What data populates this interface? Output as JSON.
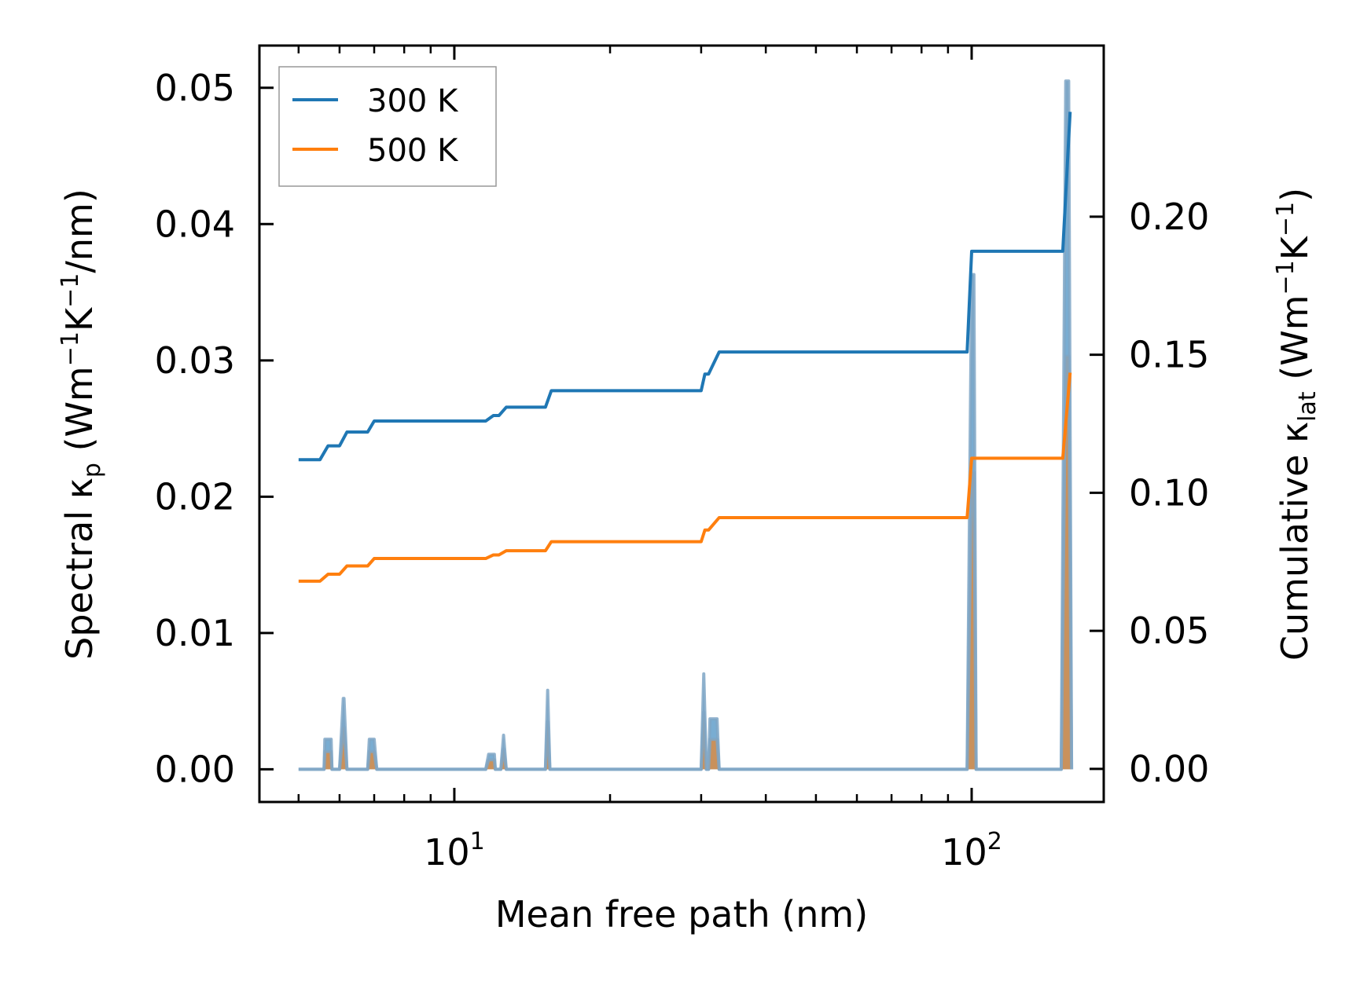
{
  "chart_data": {
    "type": "line",
    "title": "",
    "xlabel": "Mean free path (nm)",
    "ylabel_left": {
      "main": "Spectral κ",
      "sub": "p",
      "unit_pre": " (Wm",
      "sup1": "−1",
      "unit_mid": "K",
      "sup2": "−1",
      "unit_post": "/nm)"
    },
    "ylabel_right": {
      "main": "Cumulative κ",
      "sub": "lat",
      "unit_pre": " (Wm",
      "sup1": "−1",
      "unit_mid": "K",
      "sup2": "−1",
      "unit_post": ")"
    },
    "xscale": "log",
    "xlim": [
      4.2,
      180
    ],
    "ylim_left": [
      -0.0024,
      0.0531
    ],
    "ylim_right": [
      -0.012,
      0.262
    ],
    "xticks": [
      {
        "value": 10,
        "base": "10",
        "exp": "1"
      },
      {
        "value": 100,
        "base": "10",
        "exp": "2"
      }
    ],
    "yticks_left": [
      {
        "value": 0.0,
        "label": "0.00"
      },
      {
        "value": 0.01,
        "label": "0.01"
      },
      {
        "value": 0.02,
        "label": "0.02"
      },
      {
        "value": 0.03,
        "label": "0.03"
      },
      {
        "value": 0.04,
        "label": "0.04"
      },
      {
        "value": 0.05,
        "label": "0.05"
      }
    ],
    "yticks_right": [
      {
        "value": 0.0,
        "label": "0.00"
      },
      {
        "value": 0.05,
        "label": "0.05"
      },
      {
        "value": 0.1,
        "label": "0.10"
      },
      {
        "value": 0.15,
        "label": "0.15"
      },
      {
        "value": 0.2,
        "label": "0.20"
      }
    ],
    "legend": {
      "position": "top-left",
      "entries": [
        "300 K",
        "500 K"
      ]
    },
    "series": [
      {
        "name": "300 K",
        "color": "#1f77b4",
        "cumulative": {
          "x": [
            5,
            5.5,
            5.7,
            6.0,
            6.2,
            6.8,
            7.0,
            11.5,
            11.9,
            12.2,
            12.6,
            15.0,
            15.4,
            30,
            30.5,
            31,
            32.5,
            98,
            100,
            150,
            155
          ],
          "y": [
            0.112,
            0.112,
            0.117,
            0.117,
            0.122,
            0.122,
            0.126,
            0.126,
            0.128,
            0.128,
            0.131,
            0.131,
            0.137,
            0.137,
            0.143,
            0.143,
            0.151,
            0.151,
            0.1875,
            0.1875,
            0.238
          ]
        },
        "spectral": {
          "x": [
            5,
            5.6,
            5.62,
            5.78,
            5.8,
            6.0,
            6.1,
            6.12,
            6.2,
            6.3,
            6.8,
            6.85,
            6.87,
            7.0,
            7.08,
            11.5,
            11.65,
            11.67,
            11.95,
            12.0,
            12.3,
            12.45,
            12.6,
            15.0,
            15.15,
            15.3,
            30.0,
            30.35,
            30.7,
            31.0,
            31.2,
            32.2,
            32.5,
            98.0,
            100.0,
            101.0,
            102.0,
            149.0,
            152.0,
            154.0,
            156.0
          ],
          "y": [
            0,
            0,
            0.0022,
            0.0022,
            0,
            0,
            0.0052,
            0.0052,
            0,
            0,
            0,
            0.0022,
            0.0022,
            0.0022,
            0,
            0,
            0.0011,
            0.0011,
            0.0011,
            0,
            0,
            0.0025,
            0,
            0,
            0.0058,
            0,
            0,
            0.007,
            0,
            0,
            0.0037,
            0.0037,
            0,
            0,
            0.0363,
            0.0363,
            0,
            0,
            0.0505,
            0.0505,
            0
          ]
        }
      },
      {
        "name": "500 K",
        "color": "#ff7f0e",
        "cumulative": {
          "x": [
            5,
            5.5,
            5.7,
            6.0,
            6.2,
            6.8,
            7.0,
            11.5,
            11.9,
            12.2,
            12.6,
            15.0,
            15.4,
            30,
            30.5,
            31,
            32.5,
            98,
            100,
            150,
            155
          ],
          "y": [
            0.068,
            0.068,
            0.0705,
            0.0705,
            0.0735,
            0.0735,
            0.0762,
            0.0762,
            0.0775,
            0.0775,
            0.079,
            0.079,
            0.0823,
            0.0823,
            0.0865,
            0.0865,
            0.091,
            0.091,
            0.1125,
            0.1125,
            0.1435
          ]
        },
        "spectral": {
          "x": [
            5,
            5.6,
            5.62,
            5.78,
            5.8,
            6.0,
            6.1,
            6.12,
            6.2,
            6.3,
            6.8,
            6.85,
            6.87,
            7.0,
            7.08,
            11.5,
            11.65,
            11.67,
            11.95,
            12.0,
            12.3,
            12.45,
            12.6,
            15.0,
            15.15,
            15.3,
            30.0,
            30.35,
            30.7,
            31.0,
            31.2,
            32.2,
            32.5,
            98.0,
            100.0,
            101.0,
            102.0,
            149.0,
            152.0,
            154.0,
            156.0
          ],
          "y": [
            0,
            0,
            0.0013,
            0.0013,
            0,
            0,
            0.0031,
            0.0031,
            0,
            0,
            0,
            0.0013,
            0.0013,
            0.0013,
            0,
            0,
            0.0007,
            0.0007,
            0.0007,
            0,
            0,
            0.0015,
            0,
            0,
            0.0035,
            0,
            0,
            0.0042,
            0,
            0,
            0.0022,
            0.0022,
            0,
            0,
            0.0218,
            0.0218,
            0,
            0,
            0.0303,
            0.0303,
            0
          ]
        }
      }
    ]
  }
}
